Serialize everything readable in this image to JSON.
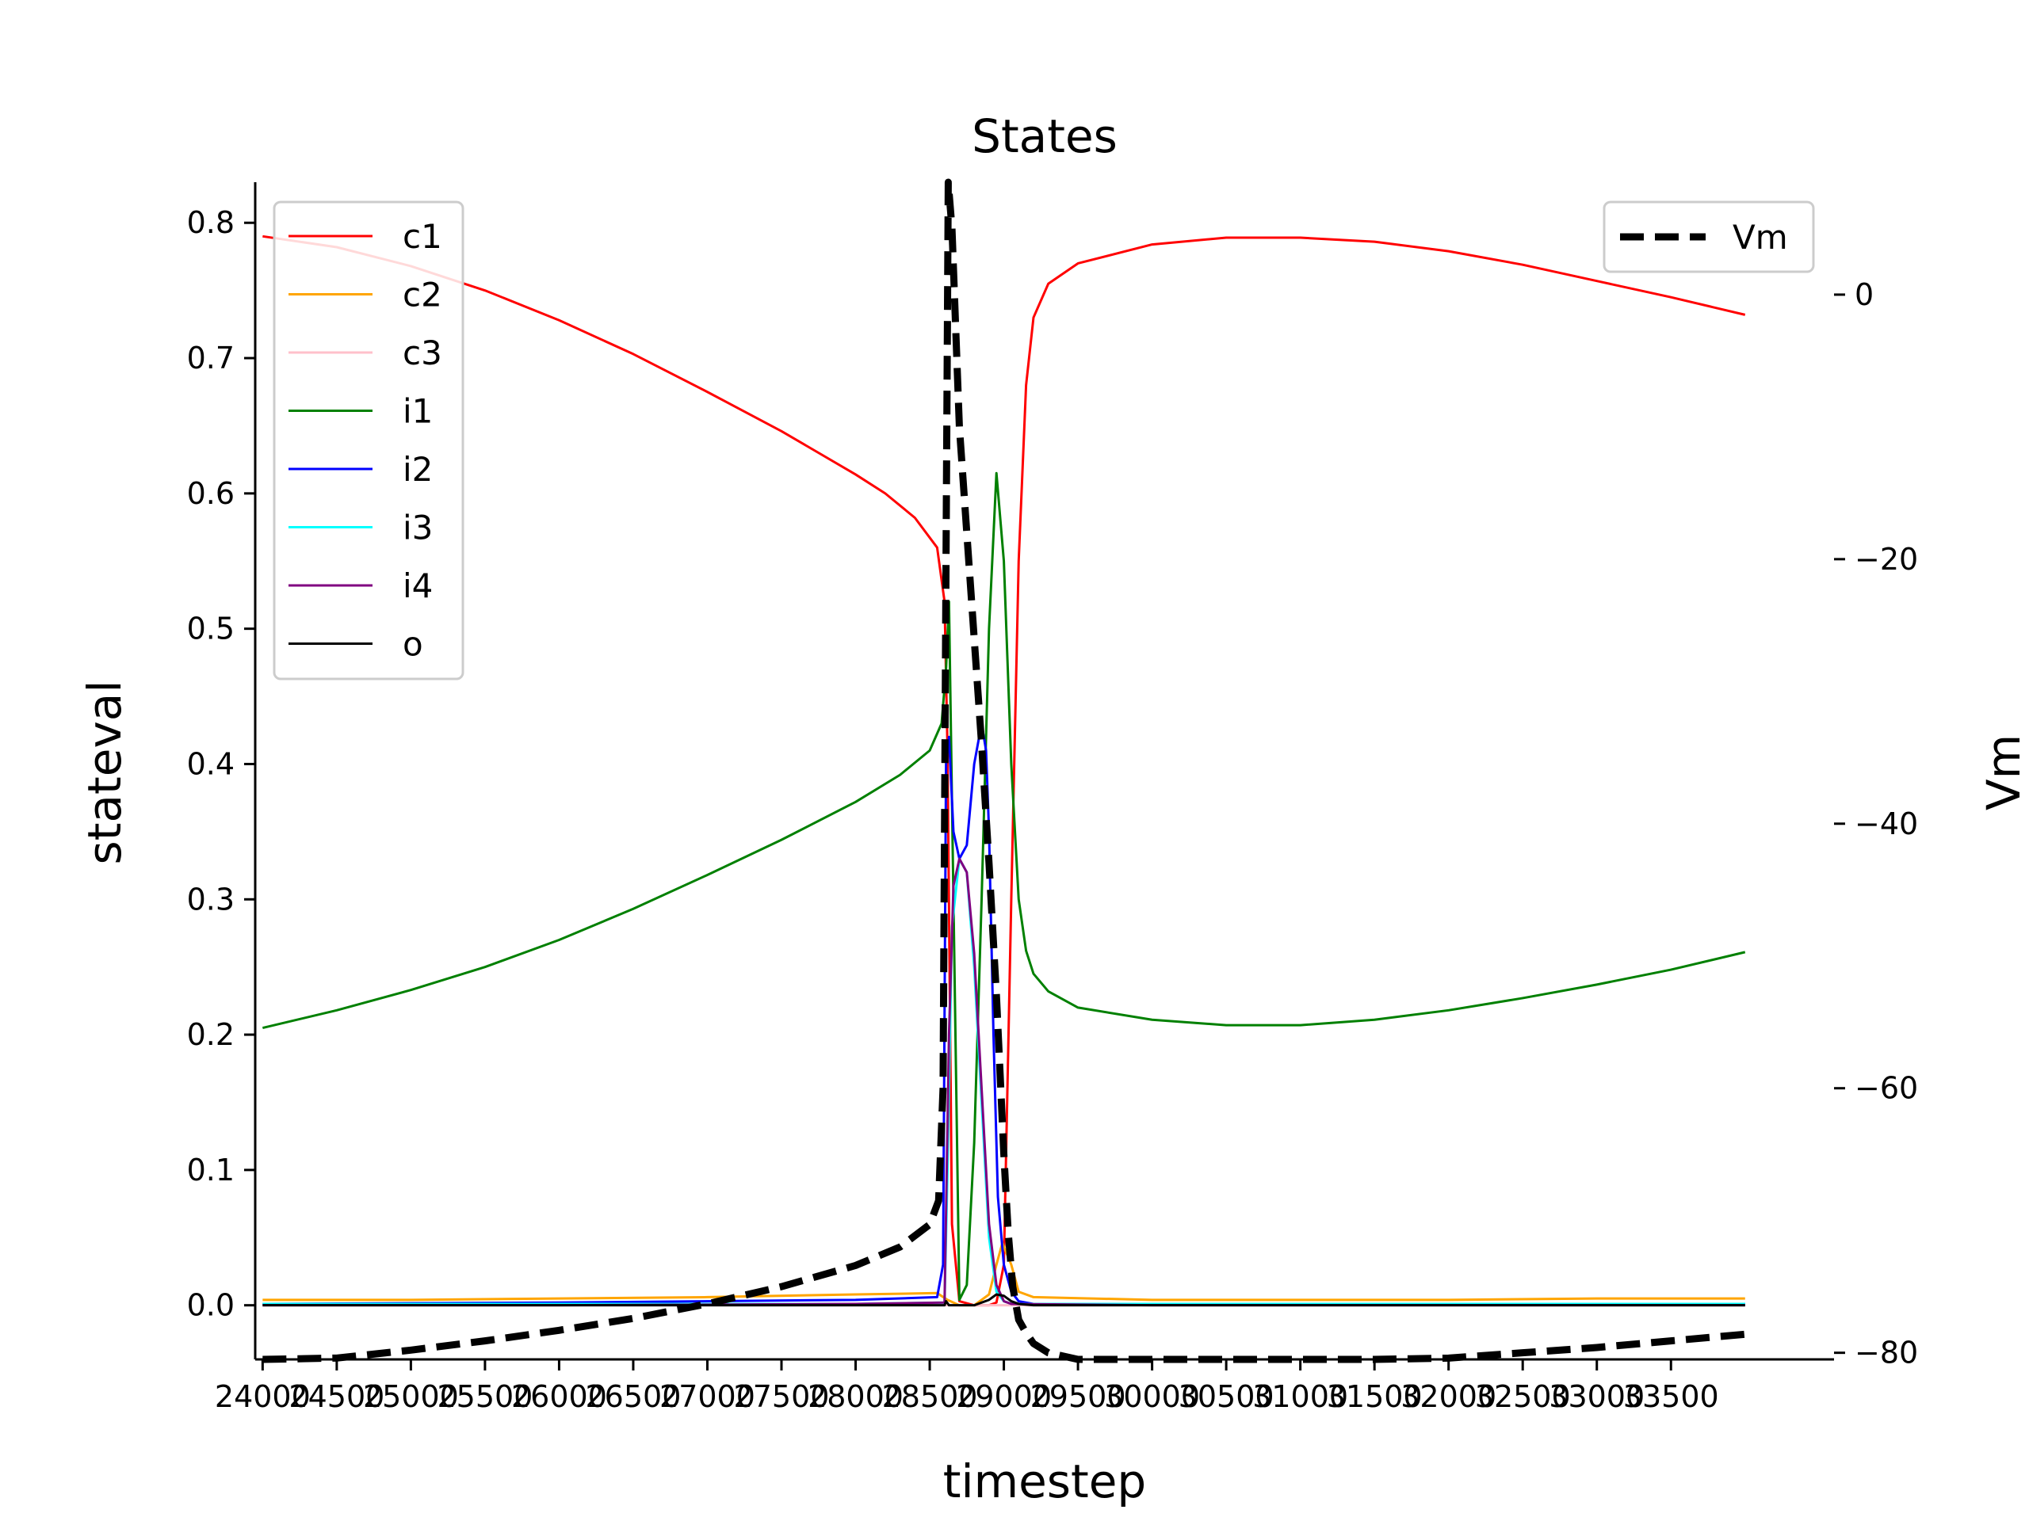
{
  "chart_data": {
    "type": "line",
    "title": "States",
    "xlabel": "timestep",
    "ylabel": "stateval",
    "y2label": "Vm",
    "xlim": [
      23950,
      34600
    ],
    "ylim": [
      -0.04,
      0.83
    ],
    "y2lim": [
      -80.5,
      8.5
    ],
    "xticks": [
      24000,
      24500,
      25000,
      25500,
      26000,
      26500,
      27000,
      27500,
      28000,
      28500,
      29000,
      29500,
      30000,
      30500,
      31000,
      31500,
      32000,
      32500,
      33000,
      33500
    ],
    "xtick_labels": [
      "24000",
      "24500",
      "25000",
      "25500",
      "26000",
      "26500",
      "27000",
      "27500",
      "28000",
      "28500",
      "29000",
      "29500",
      "30000",
      "30500",
      "31000",
      "31500",
      "32000",
      "32500",
      "33000",
      "33500"
    ],
    "yticks": [
      0.0,
      0.1,
      0.2,
      0.3,
      0.4,
      0.5,
      0.6,
      0.7,
      0.8
    ],
    "ytick_labels": [
      "0.0",
      "0.1",
      "0.2",
      "0.3",
      "0.4",
      "0.5",
      "0.6",
      "0.7",
      "0.8"
    ],
    "y2ticks": [
      0,
      -20,
      -40,
      -60,
      -80
    ],
    "y2tick_labels": [
      "0",
      "−20",
      "−40",
      "−60",
      "−80"
    ],
    "grid": false,
    "legend_left": {
      "placement": "upper-left"
    },
    "legend_right": {
      "placement": "upper-right"
    },
    "series": [
      {
        "name": "c1",
        "color": "#ff0000",
        "axis": "left",
        "x": [
          24000,
          24500,
          25000,
          25500,
          26000,
          26500,
          27000,
          27500,
          28000,
          28200,
          28400,
          28550,
          28600,
          28620,
          28650,
          28700,
          28800,
          28900,
          28950,
          29000,
          29050,
          29100,
          29150,
          29200,
          29300,
          29500,
          30000,
          30500,
          31000,
          31500,
          32000,
          32500,
          33000,
          33500,
          34000
        ],
        "y": [
          0.79,
          0.782,
          0.768,
          0.75,
          0.728,
          0.703,
          0.675,
          0.646,
          0.614,
          0.6,
          0.582,
          0.56,
          0.52,
          0.41,
          0.06,
          0.003,
          0.0,
          0.0,
          0.002,
          0.03,
          0.3,
          0.55,
          0.68,
          0.73,
          0.755,
          0.77,
          0.784,
          0.789,
          0.789,
          0.786,
          0.779,
          0.769,
          0.757,
          0.745,
          0.732
        ]
      },
      {
        "name": "c2",
        "color": "#ffa500",
        "axis": "left",
        "x": [
          24000,
          25000,
          26000,
          27000,
          28000,
          28550,
          28620,
          28700,
          28800,
          28900,
          28950,
          28990,
          29050,
          29100,
          29200,
          30000,
          31000,
          32000,
          33000,
          34000
        ],
        "y": [
          0.004,
          0.004,
          0.005,
          0.006,
          0.008,
          0.009,
          0.004,
          0.0,
          0.0,
          0.008,
          0.03,
          0.046,
          0.03,
          0.01,
          0.006,
          0.004,
          0.004,
          0.004,
          0.005,
          0.005
        ]
      },
      {
        "name": "c3",
        "color": "#ffc0cb",
        "axis": "left",
        "x": [
          24000,
          26000,
          28000,
          28600,
          28700,
          28900,
          29000,
          29100,
          30000,
          32000,
          34000
        ],
        "y": [
          0.0,
          0.0,
          0.0,
          0.0,
          0.0,
          0.0,
          0.0,
          0.0,
          0.0,
          0.0,
          0.0
        ]
      },
      {
        "name": "i1",
        "color": "#008000",
        "axis": "left",
        "x": [
          24000,
          24500,
          25000,
          25500,
          26000,
          26500,
          27000,
          27500,
          28000,
          28300,
          28500,
          28580,
          28610,
          28630,
          28660,
          28700,
          28750,
          28800,
          28850,
          28900,
          28950,
          29000,
          29050,
          29100,
          29150,
          29200,
          29300,
          29500,
          30000,
          30500,
          31000,
          31500,
          32000,
          32500,
          33000,
          33500,
          34000
        ],
        "y": [
          0.205,
          0.218,
          0.233,
          0.25,
          0.27,
          0.293,
          0.318,
          0.344,
          0.372,
          0.392,
          0.41,
          0.43,
          0.47,
          0.52,
          0.3,
          0.004,
          0.015,
          0.12,
          0.3,
          0.5,
          0.615,
          0.55,
          0.4,
          0.3,
          0.262,
          0.245,
          0.232,
          0.22,
          0.211,
          0.207,
          0.207,
          0.211,
          0.218,
          0.227,
          0.237,
          0.248,
          0.261
        ]
      },
      {
        "name": "i2",
        "color": "#0000ff",
        "axis": "left",
        "x": [
          24000,
          26000,
          28000,
          28550,
          28590,
          28610,
          28630,
          28660,
          28700,
          28750,
          28800,
          28850,
          28880,
          28900,
          28930,
          28960,
          29000,
          29050,
          29100,
          29200,
          30000,
          32000,
          34000
        ],
        "y": [
          0.001,
          0.002,
          0.004,
          0.006,
          0.03,
          0.4,
          0.42,
          0.35,
          0.33,
          0.34,
          0.4,
          0.43,
          0.41,
          0.35,
          0.2,
          0.08,
          0.03,
          0.01,
          0.003,
          0.001,
          0.001,
          0.001,
          0.001
        ]
      },
      {
        "name": "i3",
        "color": "#00ffff",
        "axis": "left",
        "x": [
          24000,
          26000,
          28000,
          28600,
          28620,
          28650,
          28700,
          28750,
          28800,
          28850,
          28900,
          28950,
          29000,
          29050,
          30000,
          32000,
          34000
        ],
        "y": [
          0.001,
          0.001,
          0.001,
          0.002,
          0.1,
          0.28,
          0.33,
          0.32,
          0.25,
          0.15,
          0.05,
          0.01,
          0.003,
          0.001,
          0.001,
          0.001,
          0.001
        ]
      },
      {
        "name": "i4",
        "color": "#800080",
        "axis": "left",
        "x": [
          24000,
          26000,
          28000,
          28600,
          28630,
          28660,
          28700,
          28750,
          28800,
          28850,
          28900,
          28950,
          29000,
          29050,
          30000,
          32000,
          34000
        ],
        "y": [
          0.0,
          0.0,
          0.001,
          0.002,
          0.2,
          0.31,
          0.33,
          0.32,
          0.26,
          0.16,
          0.06,
          0.015,
          0.003,
          0.001,
          0.0,
          0.0,
          0.0
        ]
      },
      {
        "name": "o",
        "color": "#000000",
        "axis": "left",
        "x": [
          24000,
          26000,
          28000,
          28600,
          28610,
          28630,
          28680,
          28800,
          28900,
          28950,
          29000,
          29050,
          29100,
          29200,
          30000,
          32000,
          34000
        ],
        "y": [
          0.0,
          0.0,
          0.0,
          0.0,
          0.003,
          0.0,
          0.0,
          0.0,
          0.004,
          0.008,
          0.007,
          0.003,
          0.001,
          0.0,
          0.0,
          0.0,
          0.0
        ]
      },
      {
        "name": "Vm",
        "color": "#000000",
        "axis": "right",
        "dashed": true,
        "x": [
          24000,
          24500,
          25000,
          25500,
          26000,
          26500,
          27000,
          27500,
          28000,
          28300,
          28500,
          28560,
          28590,
          28610,
          28625,
          28650,
          28700,
          28750,
          28800,
          28850,
          28900,
          28950,
          29000,
          29030,
          29060,
          29100,
          29150,
          29200,
          29300,
          29500,
          30000,
          30500,
          31000,
          31500,
          32000,
          32500,
          33000,
          33500,
          34000
        ],
        "y": [
          -80.8,
          -80.4,
          -79.8,
          -79.1,
          -78.3,
          -77.4,
          -76.3,
          -75.0,
          -73.4,
          -72.0,
          -70.3,
          -68.5,
          -60.0,
          -20.0,
          8.5,
          5.0,
          -10.0,
          -18.0,
          -26.0,
          -34.0,
          -43.0,
          -53.0,
          -65.0,
          -71.0,
          -75.0,
          -77.5,
          -78.5,
          -79.3,
          -80.0,
          -80.6,
          -80.9,
          -81.0,
          -80.9,
          -80.7,
          -80.4,
          -80.0,
          -79.6,
          -79.1,
          -78.6
        ]
      }
    ]
  }
}
